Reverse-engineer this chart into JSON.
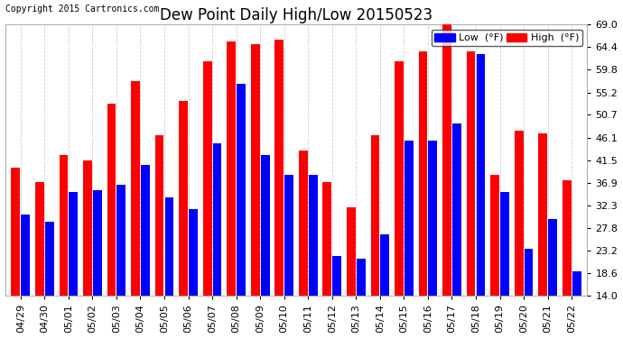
{
  "title": "Dew Point Daily High/Low 20150523",
  "copyright": "Copyright 2015 Cartronics.com",
  "legend_low": "Low  (°F)",
  "legend_high": "High  (°F)",
  "dates": [
    "04/29",
    "04/30",
    "05/01",
    "05/02",
    "05/03",
    "05/04",
    "05/05",
    "05/06",
    "05/07",
    "05/08",
    "05/09",
    "05/10",
    "05/11",
    "05/12",
    "05/13",
    "05/14",
    "05/15",
    "05/16",
    "05/17",
    "05/18",
    "05/19",
    "05/20",
    "05/21",
    "05/22"
  ],
  "high": [
    40.0,
    37.0,
    42.5,
    41.5,
    53.0,
    57.5,
    46.5,
    53.5,
    61.5,
    65.5,
    65.0,
    66.0,
    43.5,
    37.0,
    32.0,
    46.5,
    61.5,
    63.5,
    70.0,
    63.5,
    38.5,
    47.5,
    47.0,
    37.5
  ],
  "low": [
    30.5,
    29.0,
    35.0,
    35.5,
    36.5,
    40.5,
    34.0,
    31.5,
    45.0,
    57.0,
    42.5,
    38.5,
    38.5,
    22.0,
    21.5,
    26.5,
    45.5,
    45.5,
    49.0,
    63.0,
    35.0,
    23.5,
    29.5,
    19.0
  ],
  "ymin": 14.0,
  "ymax": 69.0,
  "yticks": [
    14.0,
    18.6,
    23.2,
    27.8,
    32.3,
    36.9,
    41.5,
    46.1,
    50.7,
    55.2,
    59.8,
    64.4,
    69.0
  ],
  "bar_color_high": "#ff0000",
  "bar_color_low": "#0000ff",
  "background_color": "#ffffff",
  "plot_bg_color": "#ffffff",
  "grid_color": "#cccccc",
  "title_fontsize": 12,
  "copyright_fontsize": 7,
  "tick_fontsize": 8,
  "legend_fontsize": 8,
  "bar_width": 0.37,
  "bar_gap": 0.04
}
